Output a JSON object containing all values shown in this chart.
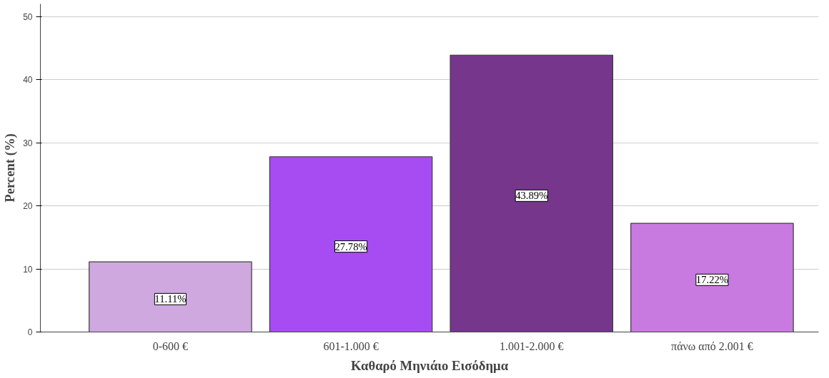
{
  "chart_data": {
    "type": "bar",
    "xlabel": "Καθαρό Μηνιάιο Εισόδημα",
    "ylabel": "Percent (%)",
    "categories": [
      "0-600 €",
      "601-1.000 €",
      "1.001-2.000 €",
      "πάνω από 2.001 €"
    ],
    "values": [
      11.11,
      27.78,
      43.89,
      17.22
    ],
    "colors": [
      "#cfa8e0",
      "#a64cf2",
      "#75368c",
      "#c87ae0"
    ],
    "value_labels": [
      "11.11%",
      "27.78%",
      "43.89%",
      "17.22%"
    ],
    "ylim": [
      0,
      52
    ],
    "yticks": [
      0,
      10,
      20,
      30,
      40,
      50
    ],
    "grid": "y"
  }
}
